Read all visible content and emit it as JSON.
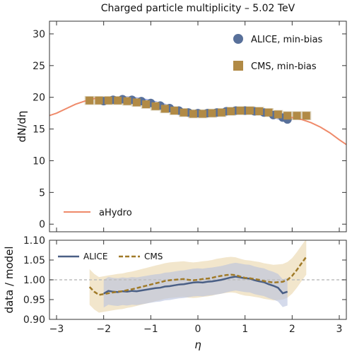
{
  "chart_data": [
    {
      "type": "line",
      "title": "Charged particle multiplicity – 5.02 TeV",
      "ylabel": "dN/dη",
      "xlim": [
        -3.15,
        3.15
      ],
      "ylim": [
        -1.2,
        32
      ],
      "yticks": [
        0,
        5,
        10,
        15,
        20,
        25,
        30
      ],
      "legend_placement": "top-right and bottom-left",
      "series": [
        {
          "name": "ALICE, min-bias",
          "style": "points-with-band",
          "color": "#58709a",
          "band_color": "#6f86e6",
          "x": [
            -2.0,
            -1.8,
            -1.6,
            -1.4,
            -1.2,
            -1.0,
            -0.8,
            -0.6,
            -0.4,
            -0.2,
            0.0,
            0.2,
            0.4,
            0.6,
            0.8,
            1.0,
            1.2,
            1.4,
            1.6,
            1.8,
            1.9
          ],
          "y": [
            19.4,
            19.6,
            19.7,
            19.6,
            19.4,
            19.1,
            18.7,
            18.3,
            17.9,
            17.6,
            17.5,
            17.5,
            17.6,
            17.8,
            17.9,
            17.9,
            17.8,
            17.6,
            17.2,
            16.8,
            16.5
          ],
          "err": [
            0.5,
            0.5,
            0.5,
            0.5,
            0.5,
            0.5,
            0.5,
            0.5,
            0.5,
            0.5,
            0.5,
            0.5,
            0.5,
            0.5,
            0.5,
            0.5,
            0.5,
            0.5,
            0.5,
            0.5,
            0.5
          ]
        },
        {
          "name": "CMS, min-bias",
          "style": "squares",
          "color": "#b18a45",
          "band_color": "#ddd6c2",
          "x": [
            -2.3,
            -2.1,
            -1.9,
            -1.7,
            -1.5,
            -1.3,
            -1.1,
            -0.9,
            -0.7,
            -0.5,
            -0.3,
            -0.1,
            0.1,
            0.3,
            0.5,
            0.7,
            0.9,
            1.1,
            1.3,
            1.5,
            1.7,
            1.9,
            2.1,
            2.3
          ],
          "y": [
            19.5,
            19.5,
            19.5,
            19.5,
            19.4,
            19.2,
            18.9,
            18.6,
            18.2,
            17.9,
            17.6,
            17.4,
            17.4,
            17.5,
            17.6,
            17.8,
            17.9,
            17.9,
            17.8,
            17.6,
            17.3,
            17.1,
            17.1,
            17.1
          ],
          "err": [
            0.7,
            0.7,
            0.7,
            0.7,
            0.7,
            0.7,
            0.7,
            0.7,
            0.7,
            0.7,
            0.7,
            0.7,
            0.7,
            0.7,
            0.7,
            0.7,
            0.7,
            0.7,
            0.7,
            0.7,
            0.7,
            0.7,
            0.7,
            0.7
          ]
        },
        {
          "name": "aHydro",
          "style": "line",
          "color": "#ef8a6a",
          "x": [
            -3.2,
            -3.0,
            -2.8,
            -2.6,
            -2.4,
            -2.2,
            -2.0,
            -1.8,
            -1.6,
            -1.4,
            -1.2,
            -1.0,
            -0.8,
            -0.6,
            -0.4,
            -0.2,
            0.0,
            0.2,
            0.4,
            0.6,
            0.8,
            1.0,
            1.2,
            1.4,
            1.6,
            1.8,
            2.0,
            2.2,
            2.4,
            2.6,
            2.8,
            3.0,
            3.2
          ],
          "y": [
            17.0,
            17.5,
            18.2,
            18.9,
            19.4,
            19.8,
            19.9,
            19.8,
            19.6,
            19.3,
            19.0,
            18.7,
            18.3,
            17.9,
            17.6,
            17.4,
            17.3,
            17.4,
            17.5,
            17.7,
            17.8,
            17.8,
            17.7,
            17.5,
            17.3,
            17.0,
            16.8,
            16.5,
            16.0,
            15.3,
            14.4,
            13.3,
            12.3
          ]
        }
      ]
    },
    {
      "type": "line",
      "xlabel": "η",
      "ylabel": "data / model",
      "xlim": [
        -3.15,
        3.15
      ],
      "ylim": [
        0.9,
        1.1
      ],
      "xticks": [
        -3,
        -2,
        -1,
        0,
        1,
        2,
        3
      ],
      "yticks": [
        0.9,
        0.95,
        1.0,
        1.05,
        1.1
      ],
      "ytick_labels": [
        "0.90",
        "0.95",
        "1.00",
        "1.05",
        "1.10"
      ],
      "reference_line": 1.0,
      "legend_placement": "top-left",
      "series": [
        {
          "name": "ALICE",
          "style": "line",
          "color": "#4a5f85",
          "band_color": "#b7c2dd",
          "x": [
            -2.0,
            -1.9,
            -1.8,
            -1.7,
            -1.6,
            -1.5,
            -1.4,
            -1.3,
            -1.2,
            -1.1,
            -1.0,
            -0.9,
            -0.8,
            -0.7,
            -0.6,
            -0.5,
            -0.4,
            -0.3,
            -0.2,
            -0.1,
            0.0,
            0.1,
            0.2,
            0.3,
            0.4,
            0.5,
            0.6,
            0.7,
            0.8,
            0.9,
            1.0,
            1.1,
            1.2,
            1.3,
            1.4,
            1.5,
            1.6,
            1.7,
            1.8,
            1.9
          ],
          "y": [
            0.965,
            0.972,
            0.97,
            0.969,
            0.971,
            0.97,
            0.972,
            0.971,
            0.973,
            0.975,
            0.977,
            0.979,
            0.98,
            0.983,
            0.984,
            0.986,
            0.988,
            0.989,
            0.991,
            0.993,
            0.994,
            0.993,
            0.995,
            0.996,
            0.998,
            1.0,
            1.003,
            1.006,
            1.008,
            1.006,
            1.004,
            1.003,
            0.999,
            0.996,
            0.994,
            0.989,
            0.985,
            0.98,
            0.966,
            0.97
          ],
          "err": [
            0.035,
            0.035,
            0.035,
            0.035,
            0.035,
            0.035,
            0.035,
            0.035,
            0.035,
            0.035,
            0.035,
            0.035,
            0.035,
            0.035,
            0.035,
            0.035,
            0.035,
            0.035,
            0.035,
            0.035,
            0.035,
            0.035,
            0.035,
            0.035,
            0.035,
            0.035,
            0.035,
            0.035,
            0.035,
            0.035,
            0.035,
            0.035,
            0.035,
            0.035,
            0.035,
            0.035,
            0.035,
            0.035,
            0.035,
            0.035
          ]
        },
        {
          "name": "CMS",
          "style": "dashed",
          "color": "#a07a28",
          "band_color": "#ecdcb6",
          "x": [
            -2.3,
            -2.2,
            -2.1,
            -2.0,
            -1.9,
            -1.8,
            -1.7,
            -1.6,
            -1.5,
            -1.4,
            -1.3,
            -1.2,
            -1.1,
            -1.0,
            -0.9,
            -0.8,
            -0.7,
            -0.6,
            -0.5,
            -0.4,
            -0.3,
            -0.2,
            -0.1,
            0.0,
            0.1,
            0.2,
            0.3,
            0.4,
            0.5,
            0.6,
            0.7,
            0.8,
            0.9,
            1.0,
            1.1,
            1.2,
            1.3,
            1.4,
            1.5,
            1.6,
            1.7,
            1.8,
            1.9,
            2.0,
            2.1,
            2.2,
            2.3
          ],
          "y": [
            0.982,
            0.97,
            0.962,
            0.964,
            0.966,
            0.968,
            0.97,
            0.971,
            0.974,
            0.976,
            0.979,
            0.982,
            0.985,
            0.988,
            0.991,
            0.994,
            0.997,
            0.999,
            1.0,
            1.001,
            1.002,
            1.0,
            0.999,
            1.0,
            1.002,
            1.003,
            1.005,
            1.008,
            1.01,
            1.012,
            1.013,
            1.012,
            1.008,
            1.005,
            1.004,
            1.002,
            1.0,
            0.997,
            0.995,
            0.993,
            0.994,
            0.995,
            1.0,
            1.01,
            1.025,
            1.042,
            1.058
          ],
          "err": [
            0.045,
            0.045,
            0.045,
            0.045,
            0.045,
            0.045,
            0.045,
            0.045,
            0.045,
            0.045,
            0.045,
            0.045,
            0.045,
            0.045,
            0.045,
            0.045,
            0.045,
            0.045,
            0.045,
            0.045,
            0.045,
            0.045,
            0.045,
            0.045,
            0.045,
            0.045,
            0.045,
            0.045,
            0.045,
            0.045,
            0.045,
            0.045,
            0.045,
            0.045,
            0.045,
            0.045,
            0.045,
            0.045,
            0.045,
            0.045,
            0.045,
            0.045,
            0.045,
            0.045,
            0.045,
            0.045,
            0.045
          ]
        }
      ]
    }
  ]
}
